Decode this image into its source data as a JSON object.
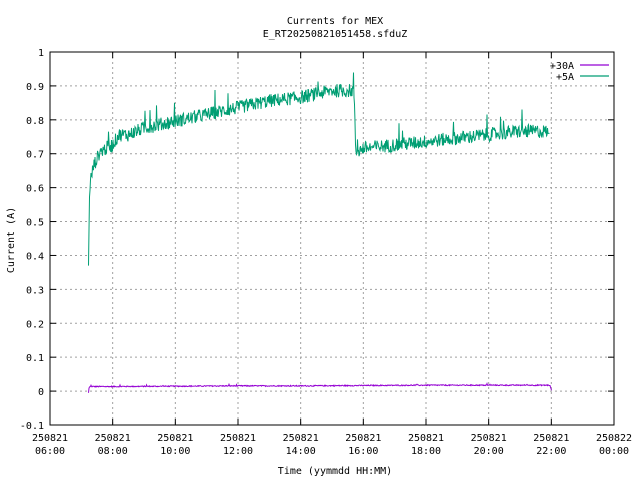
{
  "chart_data": {
    "type": "line",
    "title": "Currents for MEX",
    "subtitle": "E_RT20250821051458.sfduZ",
    "xlabel": "Time (yymmdd HH:MM)",
    "ylabel": "Current (A)",
    "x_axis": {
      "unit": "hours of 2025-08-21",
      "range": [
        6,
        24
      ]
    },
    "xlim": [
      6,
      24
    ],
    "ylim": [
      -0.1,
      1
    ],
    "grid": true,
    "legend_position": "top-right",
    "x_ticks": [
      {
        "value": 6,
        "date": "250821",
        "time": "06:00"
      },
      {
        "value": 8,
        "date": "250821",
        "time": "08:00"
      },
      {
        "value": 10,
        "date": "250821",
        "time": "10:00"
      },
      {
        "value": 12,
        "date": "250821",
        "time": "12:00"
      },
      {
        "value": 14,
        "date": "250821",
        "time": "14:00"
      },
      {
        "value": 16,
        "date": "250821",
        "time": "16:00"
      },
      {
        "value": 18,
        "date": "250821",
        "time": "18:00"
      },
      {
        "value": 20,
        "date": "250821",
        "time": "20:00"
      },
      {
        "value": 22,
        "date": "250821",
        "time": "22:00"
      },
      {
        "value": 24,
        "date": "250822",
        "time": "00:00"
      }
    ],
    "y_ticks": [
      {
        "value": -0.1,
        "label": "-0.1"
      },
      {
        "value": 0,
        "label": "0"
      },
      {
        "value": 0.1,
        "label": "0.1"
      },
      {
        "value": 0.2,
        "label": "0.2"
      },
      {
        "value": 0.3,
        "label": "0.3"
      },
      {
        "value": 0.4,
        "label": "0.4"
      },
      {
        "value": 0.5,
        "label": "0.5"
      },
      {
        "value": 0.6,
        "label": "0.6"
      },
      {
        "value": 0.7,
        "label": "0.7"
      },
      {
        "value": 0.8,
        "label": "0.8"
      },
      {
        "value": 0.9,
        "label": "0.9"
      },
      {
        "value": 1,
        "label": "1"
      }
    ],
    "series": [
      {
        "name": "+30A",
        "color": "#9400d3",
        "noise": 0.003,
        "x": [
          7.23,
          7.25,
          7.3,
          8,
          10,
          12,
          14,
          16,
          18,
          20,
          21.95,
          22.0,
          22.02
        ],
        "y": [
          -0.005,
          0.012,
          0.013,
          0.013,
          0.014,
          0.015,
          0.015,
          0.016,
          0.017,
          0.017,
          0.017,
          0.005,
          -0.003
        ]
      },
      {
        "name": "+5A",
        "color": "#009e73",
        "noise": 0.04,
        "x": [
          7.23,
          7.26,
          7.3,
          7.4,
          7.6,
          8.0,
          8.2,
          8.5,
          9.0,
          10.0,
          11.0,
          12.0,
          13.0,
          14.0,
          15.0,
          15.7,
          15.76,
          15.8,
          16.0,
          17.0,
          18.0,
          19.0,
          20.0,
          21.0,
          21.95
        ],
        "y": [
          0.37,
          0.57,
          0.62,
          0.66,
          0.7,
          0.72,
          0.75,
          0.75,
          0.77,
          0.79,
          0.81,
          0.83,
          0.85,
          0.86,
          0.88,
          0.88,
          0.7,
          0.7,
          0.71,
          0.72,
          0.73,
          0.74,
          0.75,
          0.76,
          0.76
        ]
      }
    ]
  }
}
